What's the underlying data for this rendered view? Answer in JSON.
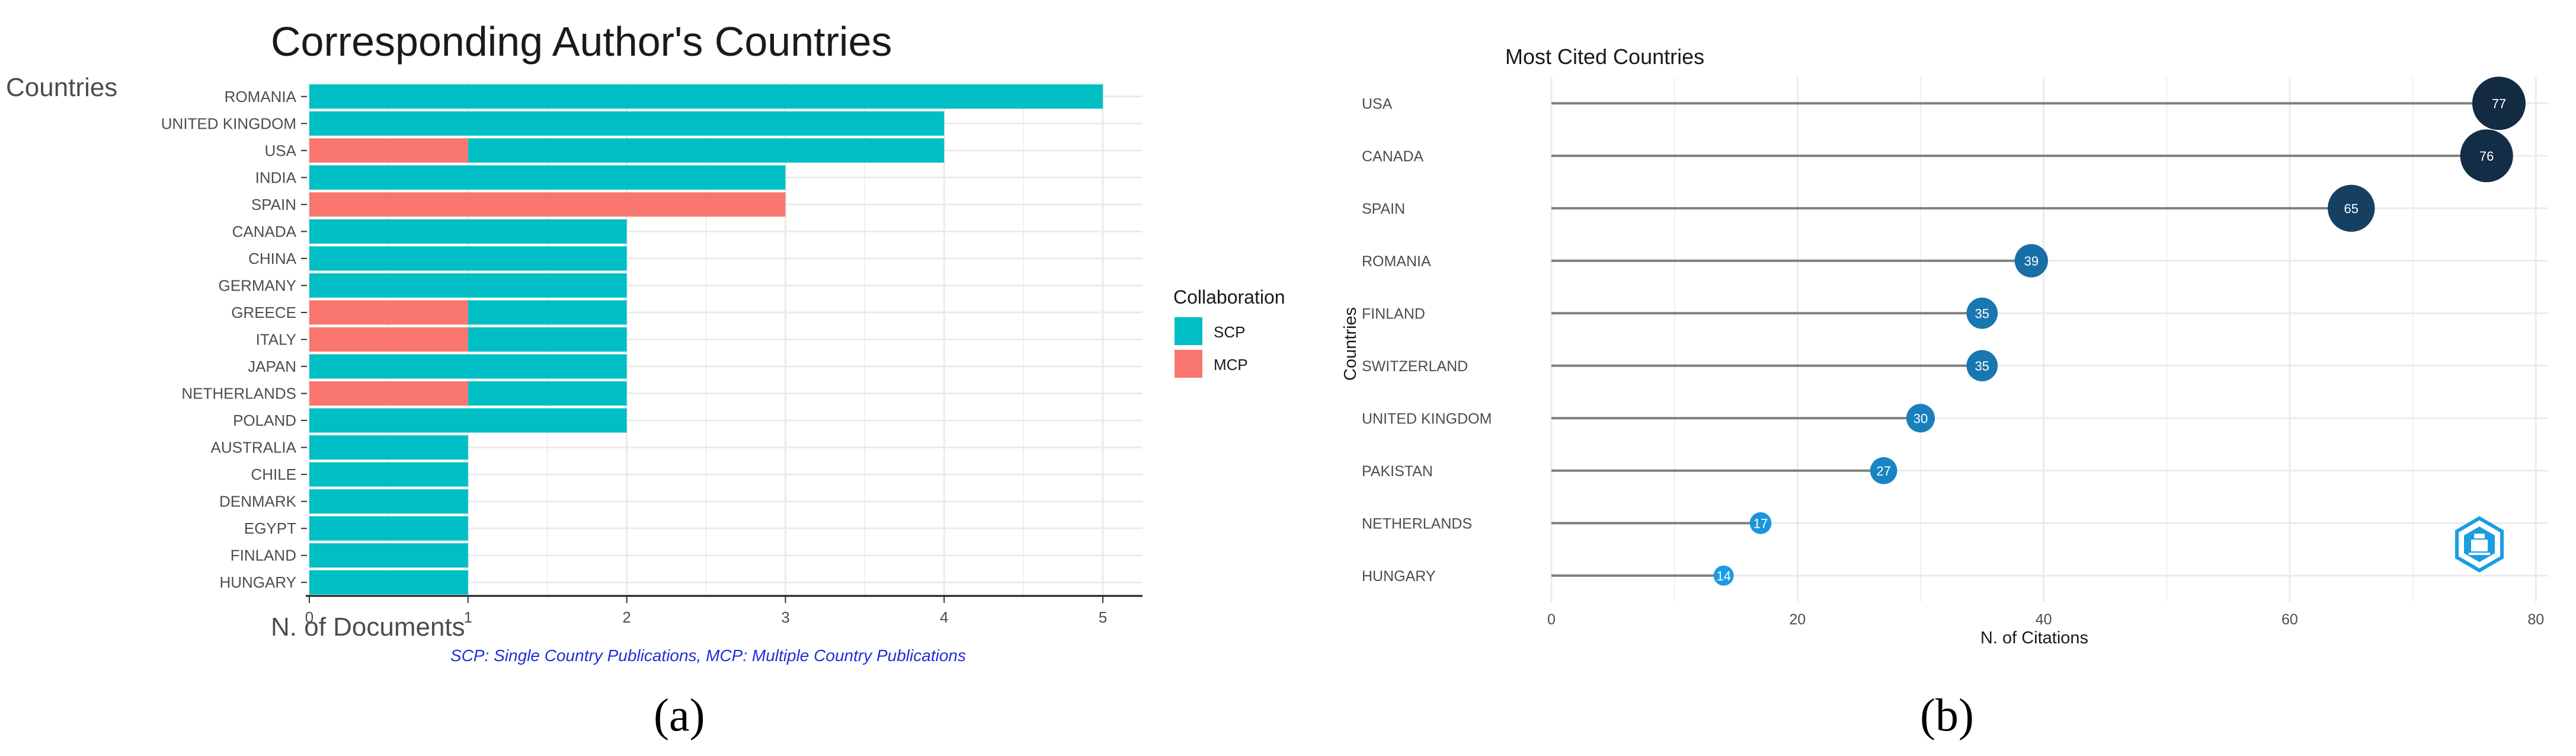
{
  "charts": {
    "a": {
      "panel_label": "(a)",
      "chart_data": {
        "type": "bar",
        "orientation": "horizontal",
        "stacked": true,
        "title": "Corresponding Author's Countries",
        "ylabel": "Countries",
        "xlabel": "N. of Documents",
        "categories": [
          "ROMANIA",
          "UNITED KINGDOM",
          "USA",
          "INDIA",
          "SPAIN",
          "CANADA",
          "CHINA",
          "GERMANY",
          "GREECE",
          "ITALY",
          "JAPAN",
          "NETHERLANDS",
          "POLAND",
          "AUSTRALIA",
          "CHILE",
          "DENMARK",
          "EGYPT",
          "FINLAND",
          "HUNGARY"
        ],
        "series": [
          {
            "name": "MCP",
            "color": "#F8766D",
            "values": [
              0,
              0,
              1,
              0,
              3,
              0,
              0,
              0,
              1,
              1,
              0,
              1,
              0,
              0,
              0,
              0,
              0,
              0,
              0
            ]
          },
          {
            "name": "SCP",
            "color": "#00BFC4",
            "values": [
              5,
              4,
              3,
              3,
              0,
              2,
              2,
              2,
              1,
              1,
              2,
              1,
              2,
              1,
              1,
              1,
              1,
              1,
              1
            ]
          }
        ],
        "xlim": [
          0,
          5.25
        ],
        "xticks": [
          0,
          1,
          2,
          3,
          4,
          5
        ],
        "legend": {
          "title": "Collaboration",
          "entries": [
            "SCP",
            "MCP"
          ],
          "placement": "right"
        },
        "caption": "SCP: Single Country Publications, MCP: Multiple Country Publications",
        "grid": true
      }
    },
    "b": {
      "panel_label": "(b)",
      "chart_data": {
        "type": "scatter",
        "subtype": "lollipop",
        "title": "Most Cited Countries",
        "xlabel": "N. of Citations",
        "ylabel": "Countries",
        "categories": [
          "USA",
          "CANADA",
          "SPAIN",
          "ROMANIA",
          "FINLAND",
          "SWITZERLAND",
          "UNITED KINGDOM",
          "PAKISTAN",
          "NETHERLANDS",
          "HUNGARY"
        ],
        "values": [
          77,
          76,
          65,
          39,
          35,
          35,
          30,
          27,
          17,
          14
        ],
        "xlim": [
          0,
          81
        ],
        "xticks": [
          0,
          20,
          40,
          60,
          80
        ],
        "grid": true
      }
    }
  },
  "colors": {
    "dark_point": "#132B43",
    "light_point": "#1B9BE6",
    "stem": "#7F7F7F",
    "grid": "#EBEBEB",
    "caption": "#1F2FD6"
  },
  "watermark": "bibliometrix-logo-icon"
}
